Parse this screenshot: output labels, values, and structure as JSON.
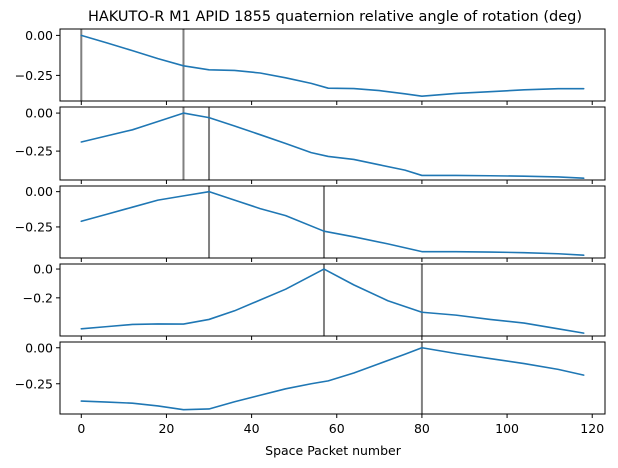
{
  "chart_data": {
    "type": "line",
    "title": "HAKUTO-R M1 APID 1855 quaternion relative angle of rotation (deg)",
    "xlabel": "Space Packet number",
    "ylabel": "",
    "xlim": [
      -5,
      123
    ],
    "x_ticks": [
      0,
      20,
      40,
      60,
      80,
      100,
      120
    ],
    "x_tick_labels": [
      "0",
      "20",
      "40",
      "60",
      "80",
      "100",
      "120"
    ],
    "line_color": "#1f77b4",
    "marker_color": "#808080",
    "grid": false,
    "panels": [
      {
        "ylim": [
          -0.41,
          0.04
        ],
        "y_ticks": [
          0.0,
          -0.25
        ],
        "y_tick_labels": [
          "0.00",
          "−0.25"
        ],
        "vlines": [
          0,
          24
        ],
        "x": [
          0,
          6,
          12,
          18,
          24,
          30,
          36,
          42,
          48,
          54,
          58,
          64,
          70,
          76,
          80,
          88,
          96,
          104,
          112,
          118
        ],
        "y": [
          0.0,
          -0.047,
          -0.095,
          -0.145,
          -0.19,
          -0.215,
          -0.219,
          -0.235,
          -0.265,
          -0.3,
          -0.33,
          -0.332,
          -0.345,
          -0.365,
          -0.38,
          -0.363,
          -0.352,
          -0.34,
          -0.333,
          -0.333
        ]
      },
      {
        "ylim": [
          -0.44,
          0.04
        ],
        "y_ticks": [
          0.0,
          -0.25
        ],
        "y_tick_labels": [
          "0.00",
          "−0.25"
        ],
        "vlines": [
          24,
          30
        ],
        "x": [
          0,
          6,
          12,
          18,
          24,
          30,
          36,
          42,
          48,
          54,
          58,
          64,
          70,
          76,
          80,
          88,
          96,
          104,
          112,
          118
        ],
        "y": [
          -0.19,
          -0.15,
          -0.11,
          -0.055,
          0.0,
          -0.03,
          -0.085,
          -0.142,
          -0.2,
          -0.26,
          -0.285,
          -0.305,
          -0.34,
          -0.375,
          -0.41,
          -0.41,
          -0.412,
          -0.415,
          -0.42,
          -0.428
        ]
      },
      {
        "ylim": [
          -0.47,
          0.04
        ],
        "y_ticks": [
          0.0,
          -0.25
        ],
        "y_tick_labels": [
          "0.00",
          "−0.25"
        ],
        "vlines": [
          30,
          57
        ],
        "x": [
          0,
          6,
          12,
          18,
          24,
          30,
          36,
          42,
          48,
          57,
          64,
          72,
          80,
          88,
          96,
          104,
          112,
          118
        ],
        "y": [
          -0.21,
          -0.16,
          -0.11,
          -0.06,
          -0.03,
          0.0,
          -0.06,
          -0.12,
          -0.17,
          -0.28,
          -0.32,
          -0.37,
          -0.425,
          -0.425,
          -0.428,
          -0.432,
          -0.44,
          -0.45
        ]
      },
      {
        "ylim": [
          -0.465,
          0.035
        ],
        "y_ticks": [
          0.0,
          -0.2
        ],
        "y_tick_labels": [
          "0.0",
          "−0.2"
        ],
        "vlines": [
          57,
          80
        ],
        "x": [
          0,
          6,
          12,
          18,
          24,
          30,
          36,
          42,
          48,
          57,
          64,
          72,
          80,
          88,
          96,
          104,
          112,
          118
        ],
        "y": [
          -0.415,
          -0.4,
          -0.385,
          -0.381,
          -0.382,
          -0.35,
          -0.29,
          -0.215,
          -0.14,
          0.0,
          -0.11,
          -0.22,
          -0.3,
          -0.32,
          -0.35,
          -0.375,
          -0.415,
          -0.445
        ]
      },
      {
        "ylim": [
          -0.46,
          0.04
        ],
        "y_ticks": [
          0.0,
          -0.25
        ],
        "y_tick_labels": [
          "0.00",
          "−0.25"
        ],
        "vlines": [
          80
        ],
        "x": [
          0,
          6,
          12,
          18,
          24,
          30,
          36,
          42,
          48,
          54,
          58,
          64,
          70,
          76,
          80,
          88,
          96,
          104,
          112,
          118
        ],
        "y": [
          -0.37,
          -0.377,
          -0.385,
          -0.404,
          -0.43,
          -0.425,
          -0.375,
          -0.33,
          -0.285,
          -0.25,
          -0.23,
          -0.175,
          -0.11,
          -0.045,
          0.0,
          -0.04,
          -0.075,
          -0.11,
          -0.15,
          -0.19
        ]
      }
    ]
  }
}
